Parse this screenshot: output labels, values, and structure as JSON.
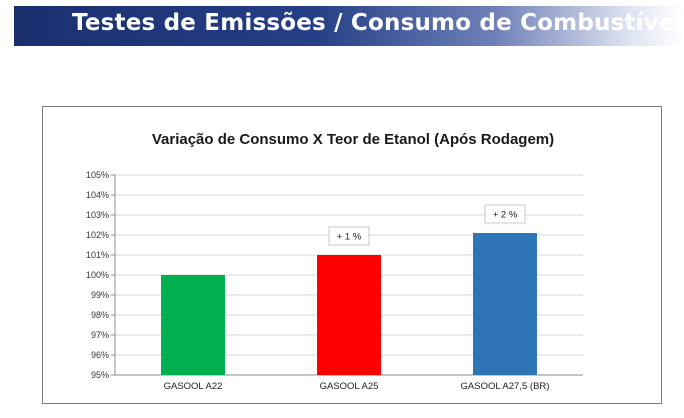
{
  "header": {
    "title": "Testes de Emissões / Consumo de Combustível",
    "bg_color": "#1f3579",
    "text_color": "#ffffff"
  },
  "chart_data": {
    "type": "bar",
    "title": "Variação de Consumo X Teor de Etanol (Após Rodagem)",
    "categories": [
      "GASOOL A22",
      "GASOOL A25",
      "GASOOL A27,5 (BR)"
    ],
    "values": [
      100,
      101,
      102.1
    ],
    "bar_colors": [
      "#00b050",
      "#ff0000",
      "#2e75b6"
    ],
    "annotations": [
      {
        "category_index": 1,
        "text": "+ 1 %"
      },
      {
        "category_index": 2,
        "text": "+ 2 %"
      }
    ],
    "ylim": [
      95,
      105
    ],
    "ytick_step": 1,
    "ytick_format": "%",
    "grid": true,
    "legend": "none",
    "xlabel": "",
    "ylabel": ""
  }
}
